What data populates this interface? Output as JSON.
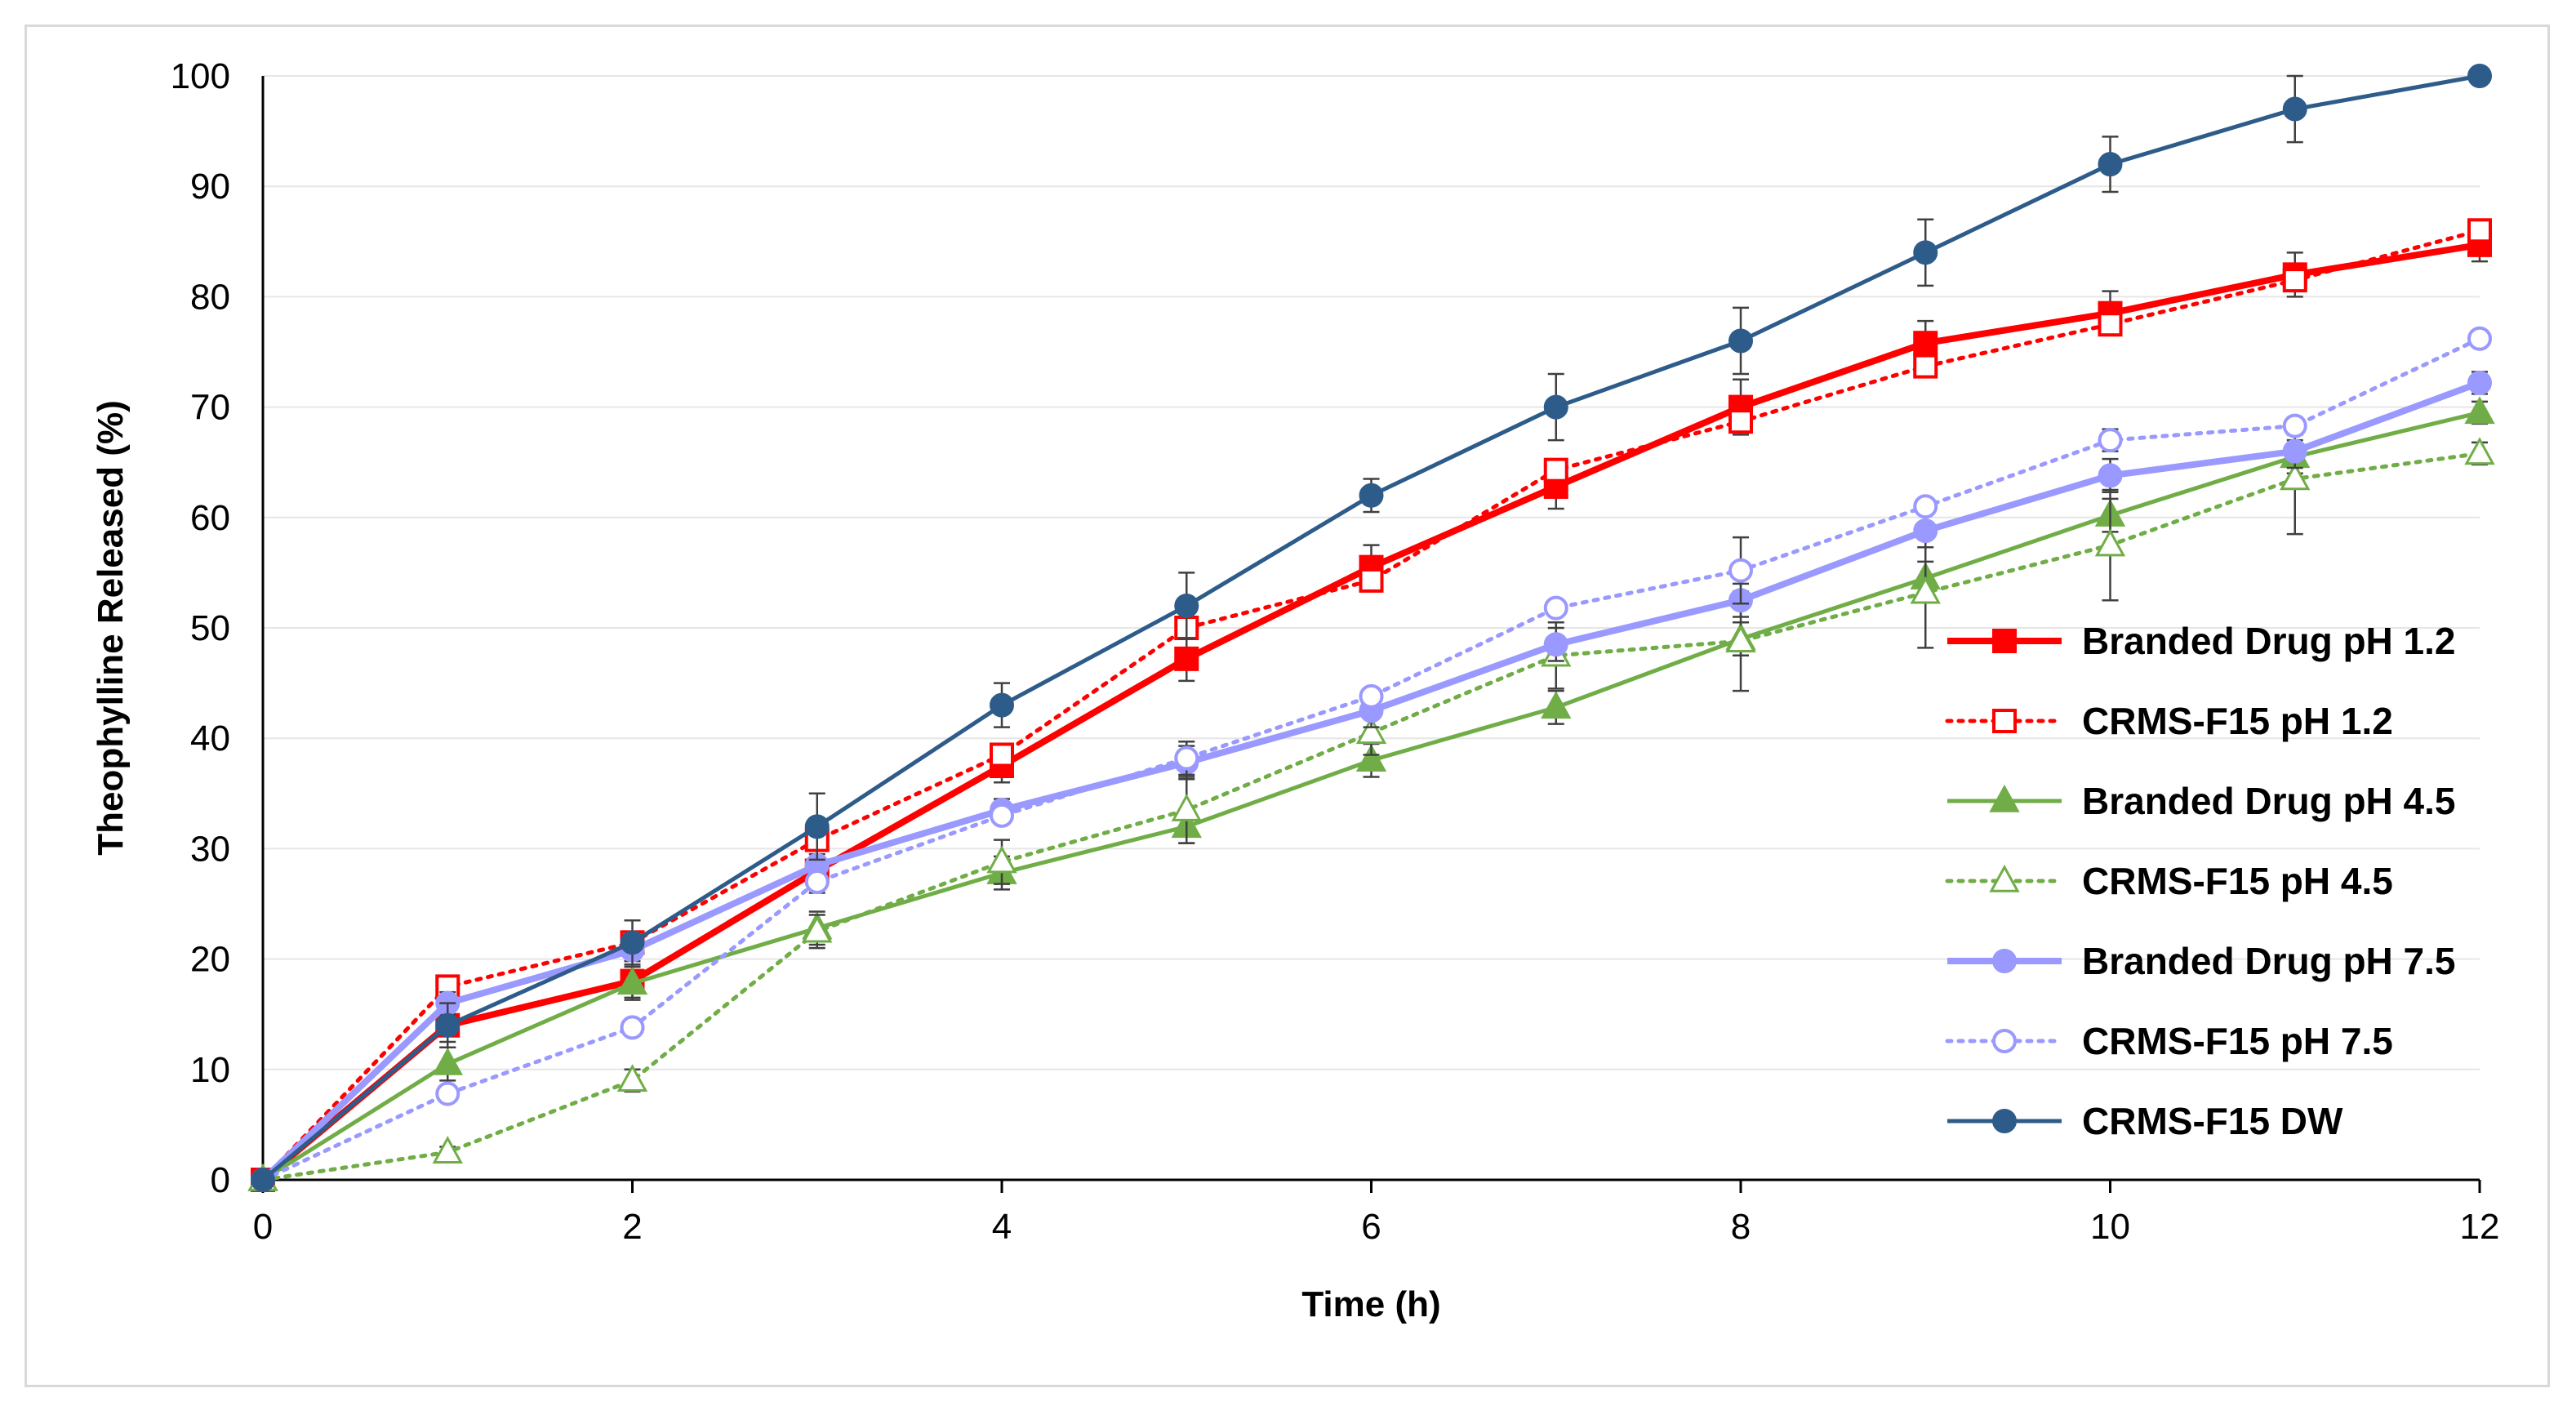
{
  "chart_data": {
    "type": "line",
    "title": "",
    "xlabel": "Time (h)",
    "ylabel": "Theophylline Released (%)",
    "xlim": [
      0,
      12
    ],
    "ylim": [
      0,
      100
    ],
    "xticks": [
      0,
      2,
      4,
      6,
      8,
      10,
      12
    ],
    "yticks": [
      0,
      10,
      20,
      30,
      40,
      50,
      60,
      70,
      80,
      90,
      100
    ],
    "x": [
      0,
      1,
      2,
      3,
      4,
      5,
      6,
      7,
      8,
      9,
      10,
      11,
      12
    ],
    "legend_position": "right",
    "series": [
      {
        "name": "Branded Drug pH 1.2",
        "color": "#ff0000",
        "style": "solid",
        "marker": "square-filled",
        "values": [
          0,
          14,
          18,
          28,
          37.5,
          47.2,
          55.5,
          62.8,
          70,
          75.8,
          78.5,
          82,
          84.7
        ],
        "errors": [
          0,
          1.5,
          1.5,
          2,
          1.5,
          2,
          2,
          2,
          2.5,
          2,
          2,
          2,
          1.5
        ]
      },
      {
        "name": "CRMS-F15 pH 1.2",
        "color": "#ff0000",
        "style": "dotted",
        "marker": "square-open",
        "values": [
          0,
          17.5,
          21.5,
          30.8,
          38.5,
          50,
          54.3,
          64.3,
          68.7,
          73.7,
          77.5,
          81.5,
          86
        ],
        "errors": [
          0,
          0,
          0,
          0,
          0,
          0,
          0,
          0,
          0,
          0,
          0,
          0,
          0
        ]
      },
      {
        "name": "Branded Drug pH 4.5",
        "color": "#70ad47",
        "style": "solid",
        "marker": "triangle-filled",
        "values": [
          0,
          10.5,
          17.8,
          22.8,
          27.8,
          32,
          38,
          42.8,
          49,
          54.5,
          60.2,
          65.5,
          69.5
        ],
        "errors": [
          0,
          1.5,
          1.5,
          1.5,
          1.5,
          1.5,
          1.5,
          1.5,
          1.5,
          1.5,
          1.5,
          1.5,
          1
        ]
      },
      {
        "name": "CRMS-F15 pH 4.5",
        "color": "#70ad47",
        "style": "dotted",
        "marker": "triangle-open",
        "values": [
          0,
          2.5,
          9,
          22.5,
          28.8,
          33.5,
          40.5,
          47.5,
          48.8,
          53.2,
          57.5,
          63.5,
          65.8
        ],
        "errors": [
          0,
          0.5,
          1,
          1.5,
          2,
          3,
          2,
          3,
          4.5,
          5,
          5,
          5,
          1
        ]
      },
      {
        "name": "Branded Drug pH 7.5",
        "color": "#9999ff",
        "style": "solid",
        "marker": "circle-filled",
        "values": [
          0,
          16,
          20.8,
          28.5,
          33.5,
          37.8,
          42.5,
          48.5,
          52.5,
          58.8,
          63.8,
          66,
          72.2
        ],
        "errors": [
          0,
          1,
          1,
          1,
          1,
          1.5,
          1.5,
          1.5,
          1.5,
          1.5,
          1.5,
          1.5,
          1
        ]
      },
      {
        "name": "CRMS-F15 pH 7.5",
        "color": "#9999ff",
        "style": "dotted",
        "marker": "circle-open",
        "values": [
          0,
          7.8,
          13.8,
          27,
          33,
          38.2,
          43.8,
          51.8,
          55.2,
          61,
          67,
          68.3,
          76.2
        ],
        "errors": [
          0,
          0,
          0,
          0,
          0,
          1.5,
          0,
          0,
          3,
          0,
          1,
          0,
          0
        ]
      },
      {
        "name": "CRMS-F15 DW",
        "color": "#2e5c8a",
        "style": "solid",
        "marker": "circle-filled",
        "values": [
          0,
          14,
          21.5,
          32,
          43,
          52,
          62,
          70,
          76,
          84,
          92,
          97,
          100
        ],
        "errors": [
          0,
          2,
          2,
          3,
          2,
          3,
          1.5,
          3,
          3,
          3,
          2.5,
          3,
          0
        ]
      }
    ]
  }
}
